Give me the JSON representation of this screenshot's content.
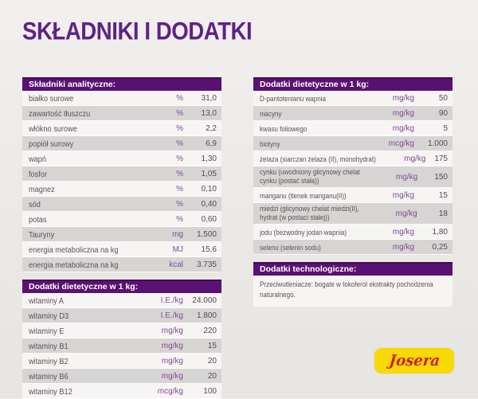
{
  "page": {
    "title": "SKŁADNIKI I DODATKI",
    "accent_color": "#5a1272",
    "title_color": "#5e2189",
    "stripe_color": "#d7d5d4"
  },
  "brand": {
    "logo_text": "Josera",
    "logo_bg": "#f9d905",
    "logo_text_color": "#cf2127"
  },
  "tables": {
    "analytical": {
      "header": "Składniki analityczne:",
      "rows": [
        {
          "label": "białko surowe",
          "unit": "%",
          "value": "31,0"
        },
        {
          "label": "zawartość tłuszczu",
          "unit": "%",
          "value": "13,0"
        },
        {
          "label": "włókno surowe",
          "unit": "%",
          "value": "2,2"
        },
        {
          "label": "popiół surowy",
          "unit": "%",
          "value": "6,9"
        },
        {
          "label": "wapń",
          "unit": "%",
          "value": "1,30"
        },
        {
          "label": "fosfor",
          "unit": "%",
          "value": "1,05"
        },
        {
          "label": "magnez",
          "unit": "%",
          "value": "0,10"
        },
        {
          "label": "sód",
          "unit": "%",
          "value": "0,40"
        },
        {
          "label": "potas",
          "unit": "%",
          "value": "0,60"
        },
        {
          "label": "Tauryny",
          "unit": "mg",
          "value": "1.500"
        },
        {
          "label": "energia metaboliczna na kg",
          "unit": "MJ",
          "value": "15,6"
        },
        {
          "label": "energia metaboliczna na kg",
          "unit": "kcal",
          "value": "3.735"
        }
      ]
    },
    "dietary_left": {
      "header": "Dodatki dietetyczne w 1 kg:",
      "rows": [
        {
          "label": "witaminy A",
          "unit": "I.E./kg",
          "value": "24.000"
        },
        {
          "label": "witaminy D3",
          "unit": "I.E./kg",
          "value": "1.800"
        },
        {
          "label": "witaminy E",
          "unit": "mg/kg",
          "value": "220"
        },
        {
          "label": "witaminy B1",
          "unit": "mg/kg",
          "value": "15"
        },
        {
          "label": "witaminy B2",
          "unit": "mg/kg",
          "value": "20"
        },
        {
          "label": "witaminy B6",
          "unit": "mg/kg",
          "value": "20"
        },
        {
          "label": "witaminy B12",
          "unit": "mcg/kg",
          "value": "100"
        }
      ]
    },
    "dietary_right": {
      "header": "Dodatki dietetyczne w 1 kg:",
      "rows": [
        {
          "label": "D-pantotenianu wapnia",
          "unit": "mg/kg",
          "value": "50"
        },
        {
          "label": "niacyny",
          "unit": "mg/kg",
          "value": "90"
        },
        {
          "label": "kwasu foliowego",
          "unit": "mg/kg",
          "value": "5"
        },
        {
          "label": "biotyny",
          "unit": "mcg/kg",
          "value": "1.000"
        },
        {
          "label": "żelaza (siarczan żelaza (II), monohydrat)",
          "unit": "mg/kg",
          "value": "175"
        },
        {
          "label": "cynku (uwodniony glicynowy chelat\ncynku (postać stała))",
          "unit": "mg/kg",
          "value": "150"
        },
        {
          "label": "manganu (tlenek manganu(II))",
          "unit": "mg/kg",
          "value": "15"
        },
        {
          "label": "miedzi (glicynowy chelat miedzi(II),\nhydrat (w postaci stałej))",
          "unit": "mg/kg",
          "value": "18"
        },
        {
          "label": "jodu (bezwodny jodan wapnia)",
          "unit": "mg/kg",
          "value": "1,80"
        },
        {
          "label": "selenu (selenin sodu)",
          "unit": "mg/kg",
          "value": "0,25"
        }
      ]
    },
    "technological": {
      "header": "Dodatki technologiczne:",
      "text": "Przeciwutleniacze: bogate w tokoferol ekstrakty pochodzenia naturalnego."
    }
  }
}
